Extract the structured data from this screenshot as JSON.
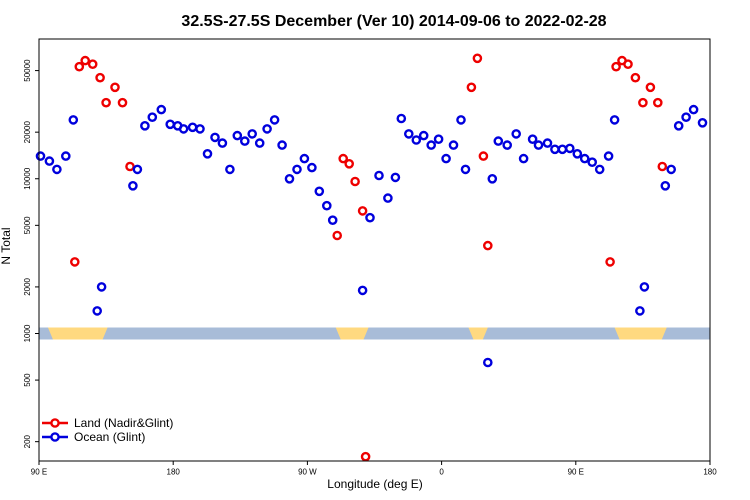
{
  "chart_data": {
    "type": "scatter",
    "title": "32.5S-27.5S December (Ver 10)   2014-09-06 to 2022-02-28",
    "xlabel": "Longitude (deg E)",
    "ylabel": "N Total",
    "x_ticks": [
      {
        "value": 90,
        "label": "90 E"
      },
      {
        "value": 180,
        "label": "180"
      },
      {
        "value": 270,
        "label": "90 W"
      },
      {
        "value": 360,
        "label": "0"
      },
      {
        "value": 450,
        "label": "90 E"
      },
      {
        "value": 540,
        "label": "180"
      }
    ],
    "y_ticks": [
      {
        "value": 200,
        "label": "200"
      },
      {
        "value": 500,
        "label": "500"
      },
      {
        "value": 1000,
        "label": "1000"
      },
      {
        "value": 2000,
        "label": "2000"
      },
      {
        "value": 5000,
        "label": "5000"
      },
      {
        "value": 10000,
        "label": "10000"
      },
      {
        "value": 20000,
        "label": "20000"
      },
      {
        "value": 50000,
        "label": "50000"
      }
    ],
    "xlim": [
      90,
      540
    ],
    "ylim": [
      150,
      80000
    ],
    "y_scale": "log",
    "legend_position": "bottom-left",
    "colors": {
      "land": "#ee0000",
      "ocean": "#0000dd",
      "ocean_band": "#a8bcd8",
      "land_band": "#ffd980"
    },
    "landmask_band_level": 1000,
    "land_segments": [
      [
        96,
        136
      ],
      [
        289,
        311
      ],
      [
        378,
        391
      ],
      [
        476,
        511
      ]
    ],
    "series": [
      {
        "name": "Land (Nadir&Glint)",
        "color": "#ee0000",
        "points": [
          [
            114,
            2900
          ],
          [
            117,
            53000
          ],
          [
            121,
            58000
          ],
          [
            126,
            55000
          ],
          [
            131,
            45000
          ],
          [
            135,
            31000
          ],
          [
            141,
            39000
          ],
          [
            146,
            31000
          ],
          [
            151,
            12000
          ],
          [
            290,
            4300
          ],
          [
            294,
            13500
          ],
          [
            298,
            12500
          ],
          [
            302,
            9600
          ],
          [
            307,
            6200
          ],
          [
            309,
            160
          ],
          [
            380,
            39000
          ],
          [
            384,
            60000
          ],
          [
            388,
            14000
          ],
          [
            391,
            3700
          ],
          [
            473,
            2900
          ],
          [
            477,
            53000
          ],
          [
            481,
            58000
          ],
          [
            485,
            55000
          ],
          [
            490,
            45000
          ],
          [
            495,
            31000
          ],
          [
            500,
            39000
          ],
          [
            505,
            31000
          ],
          [
            508,
            12000
          ]
        ]
      },
      {
        "name": "Ocean (Glint)",
        "color": "#0000dd",
        "points": [
          [
            91,
            14000
          ],
          [
            97,
            13000
          ],
          [
            102,
            11500
          ],
          [
            108,
            14000
          ],
          [
            113,
            24000
          ],
          [
            129,
            1400
          ],
          [
            132,
            2000
          ],
          [
            153,
            9000
          ],
          [
            156,
            11500
          ],
          [
            161,
            22000
          ],
          [
            166,
            25000
          ],
          [
            172,
            28000
          ],
          [
            178,
            22500
          ],
          [
            183,
            22000
          ],
          [
            187,
            21000
          ],
          [
            193,
            21500
          ],
          [
            198,
            21000
          ],
          [
            203,
            14500
          ],
          [
            208,
            18500
          ],
          [
            213,
            17000
          ],
          [
            218,
            11500
          ],
          [
            223,
            19000
          ],
          [
            228,
            17500
          ],
          [
            233,
            19500
          ],
          [
            238,
            17000
          ],
          [
            243,
            21000
          ],
          [
            248,
            24000
          ],
          [
            253,
            16500
          ],
          [
            258,
            10000
          ],
          [
            263,
            11500
          ],
          [
            268,
            13500
          ],
          [
            273,
            11800
          ],
          [
            278,
            8300
          ],
          [
            283,
            6700
          ],
          [
            287,
            5400
          ],
          [
            307,
            1900
          ],
          [
            312,
            5600
          ],
          [
            318,
            10500
          ],
          [
            324,
            7500
          ],
          [
            329,
            10200
          ],
          [
            333,
            24500
          ],
          [
            338,
            19500
          ],
          [
            343,
            17800
          ],
          [
            348,
            19000
          ],
          [
            353,
            16500
          ],
          [
            358,
            18000
          ],
          [
            363,
            13500
          ],
          [
            368,
            16500
          ],
          [
            373,
            24000
          ],
          [
            376,
            11500
          ],
          [
            391,
            650
          ],
          [
            394,
            10000
          ],
          [
            398,
            17500
          ],
          [
            404,
            16500
          ],
          [
            410,
            19500
          ],
          [
            415,
            13500
          ],
          [
            421,
            18000
          ],
          [
            425,
            16500
          ],
          [
            431,
            17000
          ],
          [
            436,
            15500
          ],
          [
            441,
            15500
          ],
          [
            446,
            15700
          ],
          [
            451,
            14500
          ],
          [
            456,
            13500
          ],
          [
            461,
            12800
          ],
          [
            466,
            11500
          ],
          [
            472,
            14000
          ],
          [
            476,
            24000
          ],
          [
            493,
            1400
          ],
          [
            496,
            2000
          ],
          [
            510,
            9000
          ],
          [
            514,
            11500
          ],
          [
            519,
            22000
          ],
          [
            524,
            25000
          ],
          [
            529,
            28000
          ],
          [
            535,
            23000
          ]
        ]
      }
    ]
  }
}
